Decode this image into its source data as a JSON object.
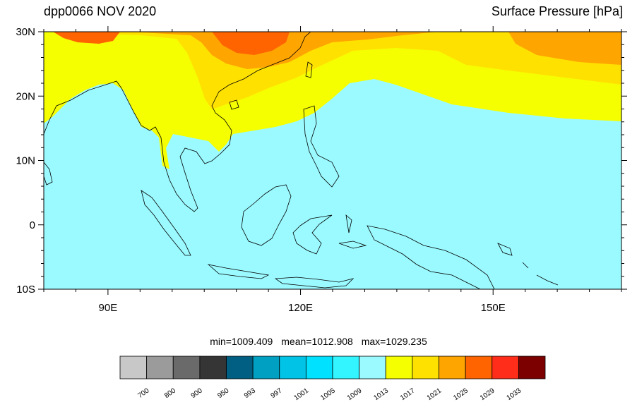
{
  "title_left": "dpp0066 NOV 2020",
  "title_right": "Surface Pressure [hPa]",
  "lat_labels": [
    "30N",
    "20N",
    "10N",
    "0",
    "10S"
  ],
  "lon_labels": [
    "90E",
    "120E",
    "150E"
  ],
  "stats": {
    "min": "min=1009.409",
    "mean": "mean=1012.908",
    "max": "max=1029.235"
  },
  "colorbar": {
    "colors": [
      "#c8c8c8",
      "#9b9b9b",
      "#6a6a6a",
      "#353535",
      "#005f82",
      "#00a0c3",
      "#00c3e6",
      "#00e1ff",
      "#32f5ff",
      "#9bfaff",
      "#f5ff00",
      "#ffe100",
      "#ffa500",
      "#ff6400",
      "#ff2d19",
      "#7d0000"
    ],
    "labels": [
      "700",
      "800",
      "900",
      "950",
      "993",
      "997",
      "1001",
      "1005",
      "1009",
      "1013",
      "1017",
      "1021",
      "1025",
      "1029",
      "1033"
    ]
  },
  "map_colors": {
    "ocean": "#9bfaff",
    "band_1013_1017": "#f5ff00",
    "band_1017_1021": "#ffe100",
    "band_1021_1025": "#ffa500",
    "band_1025_1029": "#ff6400",
    "coastline": "#000000"
  }
}
